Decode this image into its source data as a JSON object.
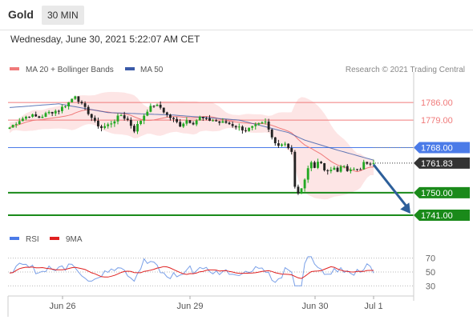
{
  "header": {
    "instrument": "Gold",
    "timeframe": "30 MIN"
  },
  "timestamp": "Wednesday, June 30, 2021 5:22:07 AM CET",
  "legend": {
    "ma20": "MA 20 + Bollinger Bands",
    "ma50": "MA 50",
    "credit": "Research © 2021 Trading Central"
  },
  "rsi_legend": {
    "rsi": "RSI",
    "ma": "9MA"
  },
  "colors": {
    "up": "#22a822",
    "down": "#222222",
    "ma20": "#f07a7a",
    "ma50": "#3a5aa8",
    "band": "#fde2e2",
    "resistance": "#f07a7a",
    "pivot": "#4b7be8",
    "support": "#1a8a1a",
    "current": "#333333",
    "arrow": "#2d5f9a"
  },
  "chart_data": {
    "type": "candlestick",
    "x_labels": [
      "Jun 26",
      "Jun 29",
      "Jun 30",
      "Jul 1"
    ],
    "y_range": [
      1737.5,
      1795.0
    ],
    "levels": [
      {
        "value": 1786.0,
        "label": "1786.00",
        "kind": "resistance"
      },
      {
        "value": 1779.0,
        "label": "1779.00",
        "kind": "resistance"
      },
      {
        "value": 1768.0,
        "label": "1768.00",
        "kind": "pivot"
      },
      {
        "value": 1761.83,
        "label": "1761.83",
        "kind": "current"
      },
      {
        "value": 1750.0,
        "label": "1750.00",
        "kind": "support"
      },
      {
        "value": 1741.0,
        "label": "1741.00",
        "kind": "support"
      }
    ],
    "price_path": [
      [
        0,
        1776
      ],
      [
        3,
        1779
      ],
      [
        6,
        1781
      ],
      [
        9,
        1780
      ],
      [
        12,
        1782
      ],
      [
        15,
        1783
      ],
      [
        18,
        1786
      ],
      [
        20,
        1789
      ],
      [
        22,
        1785
      ],
      [
        24,
        1782
      ],
      [
        26,
        1778
      ],
      [
        28,
        1776
      ],
      [
        30,
        1777
      ],
      [
        32,
        1779
      ],
      [
        34,
        1781
      ],
      [
        36,
        1779
      ],
      [
        38,
        1775
      ],
      [
        40,
        1779
      ],
      [
        42,
        1783
      ],
      [
        44,
        1785
      ],
      [
        46,
        1784
      ],
      [
        48,
        1781
      ],
      [
        50,
        1779
      ],
      [
        52,
        1777
      ],
      [
        54,
        1779
      ],
      [
        56,
        1778
      ],
      [
        58,
        1780
      ],
      [
        60,
        1779
      ],
      [
        62,
        1779
      ],
      [
        64,
        1778
      ],
      [
        66,
        1778
      ],
      [
        68,
        1777
      ],
      [
        70,
        1776
      ],
      [
        72,
        1775
      ],
      [
        74,
        1776
      ],
      [
        76,
        1777
      ],
      [
        78,
        1778
      ],
      [
        80,
        1772
      ],
      [
        82,
        1769
      ],
      [
        84,
        1770
      ],
      [
        86,
        1766
      ],
      [
        87,
        1752
      ],
      [
        88,
        1750
      ],
      [
        89,
        1751
      ],
      [
        90,
        1756
      ],
      [
        91,
        1760
      ],
      [
        92,
        1762
      ],
      [
        93,
        1760
      ],
      [
        94,
        1763
      ],
      [
        95,
        1761
      ],
      [
        96,
        1759
      ],
      [
        97,
        1758
      ],
      [
        98,
        1759
      ],
      [
        99,
        1760
      ],
      [
        100,
        1759
      ],
      [
        101,
        1760
      ],
      [
        102,
        1760
      ],
      [
        103,
        1759
      ],
      [
        104,
        1760
      ],
      [
        105,
        1760
      ],
      [
        106,
        1759
      ],
      [
        107,
        1759
      ],
      [
        108,
        1762
      ],
      [
        109,
        1761
      ],
      [
        110,
        1762
      ],
      [
        111,
        1761.8
      ]
    ],
    "ma50_path": [
      [
        0,
        1784
      ],
      [
        15,
        1785.5
      ],
      [
        30,
        1782
      ],
      [
        50,
        1781
      ],
      [
        70,
        1779
      ],
      [
        85,
        1774
      ],
      [
        90,
        1771
      ],
      [
        100,
        1767
      ],
      [
        111,
        1763
      ]
    ],
    "forecast": {
      "from": 1761.83,
      "to": 1741.0
    },
    "rsi": {
      "levels": [
        70,
        50,
        30
      ],
      "y_range": [
        20,
        80
      ]
    }
  }
}
